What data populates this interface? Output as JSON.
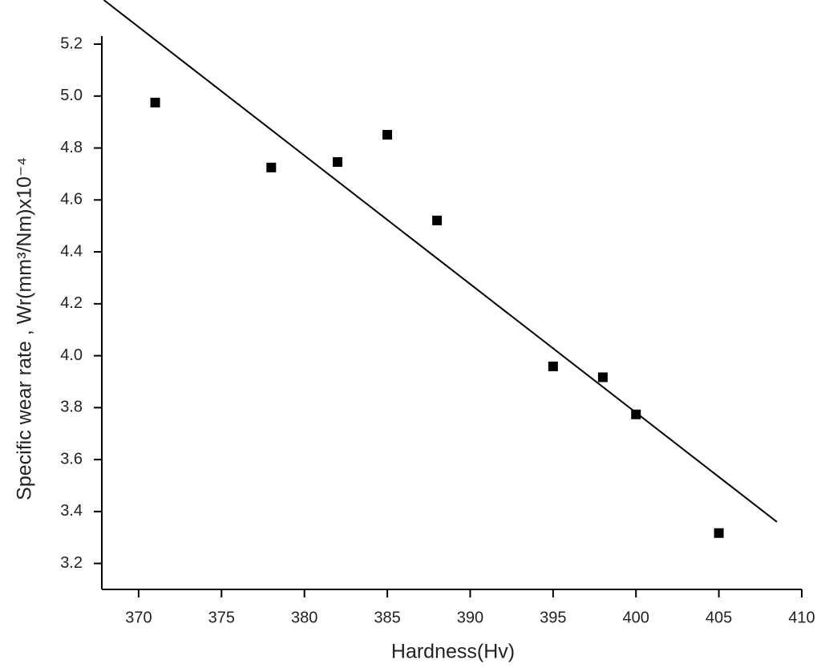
{
  "chart_data": {
    "type": "scatter",
    "x_label": "Hardness(Hv)",
    "y_label": "Specific wear rate , Wr(mm³/Nm)x10⁻⁴",
    "x": [
      371,
      378,
      382,
      385,
      388,
      395,
      398,
      400,
      405
    ],
    "values": [
      4.975,
      4.725,
      4.746,
      4.851,
      4.521,
      3.959,
      3.917,
      3.774,
      3.317
    ],
    "color": "#000000",
    "fit": {
      "x": [
        367.9,
        408.5
      ],
      "y": [
        5.37,
        3.36
      ]
    },
    "xlim": [
      367.78,
      410
    ],
    "ylim": [
      3.1,
      5.37
    ],
    "xticks": [
      370,
      375,
      380,
      385,
      390,
      395,
      400,
      405,
      410
    ],
    "yticks": [
      {
        "value": 3.2,
        "label": "3.2"
      },
      {
        "value": 3.4,
        "label": "3.4"
      },
      {
        "value": 3.6,
        "label": "3.6"
      },
      {
        "value": 3.8,
        "label": "3.8"
      },
      {
        "value": 4.0,
        "label": "4.0"
      },
      {
        "value": 4.2,
        "label": "4.2"
      },
      {
        "value": 4.4,
        "label": "4.4"
      },
      {
        "value": 4.6,
        "label": "4.6"
      },
      {
        "value": 4.8,
        "label": "4.8"
      },
      {
        "value": 5.0,
        "label": "5.0"
      },
      {
        "value": 5.2,
        "label": "5.2"
      }
    ],
    "grid": false
  }
}
